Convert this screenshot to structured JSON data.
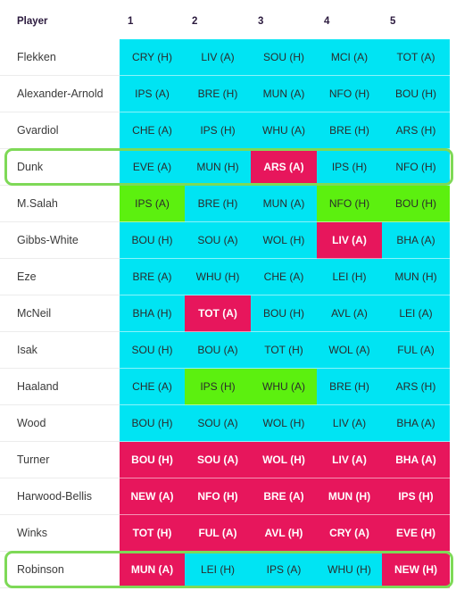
{
  "header": {
    "player": "Player",
    "gameweeks": [
      "1",
      "2",
      "3",
      "4",
      "5"
    ]
  },
  "colors": {
    "easy": "#00e4f3",
    "good": "#5cf00f",
    "hard": "#e7165c",
    "highlight": "#7ed957"
  },
  "rows": [
    {
      "player": "Flekken",
      "fixtures": [
        {
          "label": "CRY (H)",
          "tier": "easy"
        },
        {
          "label": "LIV (A)",
          "tier": "easy"
        },
        {
          "label": "SOU (H)",
          "tier": "easy"
        },
        {
          "label": "MCI (A)",
          "tier": "easy"
        },
        {
          "label": "TOT (A)",
          "tier": "easy"
        }
      ]
    },
    {
      "player": "Alexander-Arnold",
      "fixtures": [
        {
          "label": "IPS (A)",
          "tier": "easy"
        },
        {
          "label": "BRE (H)",
          "tier": "easy"
        },
        {
          "label": "MUN (A)",
          "tier": "easy"
        },
        {
          "label": "NFO (H)",
          "tier": "easy"
        },
        {
          "label": "BOU (H)",
          "tier": "easy"
        }
      ]
    },
    {
      "player": "Gvardiol",
      "fixtures": [
        {
          "label": "CHE (A)",
          "tier": "easy"
        },
        {
          "label": "IPS (H)",
          "tier": "easy"
        },
        {
          "label": "WHU (A)",
          "tier": "easy"
        },
        {
          "label": "BRE (H)",
          "tier": "easy"
        },
        {
          "label": "ARS (H)",
          "tier": "easy"
        }
      ]
    },
    {
      "player": "Dunk",
      "highlighted": true,
      "fixtures": [
        {
          "label": "EVE (A)",
          "tier": "easy"
        },
        {
          "label": "MUN (H)",
          "tier": "easy"
        },
        {
          "label": "ARS (A)",
          "tier": "hard"
        },
        {
          "label": "IPS (H)",
          "tier": "easy"
        },
        {
          "label": "NFO (H)",
          "tier": "easy"
        }
      ]
    },
    {
      "player": "M.Salah",
      "fixtures": [
        {
          "label": "IPS (A)",
          "tier": "good"
        },
        {
          "label": "BRE (H)",
          "tier": "easy"
        },
        {
          "label": "MUN (A)",
          "tier": "easy"
        },
        {
          "label": "NFO (H)",
          "tier": "good"
        },
        {
          "label": "BOU (H)",
          "tier": "good"
        }
      ]
    },
    {
      "player": "Gibbs-White",
      "fixtures": [
        {
          "label": "BOU (H)",
          "tier": "easy"
        },
        {
          "label": "SOU (A)",
          "tier": "easy"
        },
        {
          "label": "WOL (H)",
          "tier": "easy"
        },
        {
          "label": "LIV (A)",
          "tier": "hard"
        },
        {
          "label": "BHA (A)",
          "tier": "easy"
        }
      ]
    },
    {
      "player": "Eze",
      "fixtures": [
        {
          "label": "BRE (A)",
          "tier": "easy"
        },
        {
          "label": "WHU (H)",
          "tier": "easy"
        },
        {
          "label": "CHE (A)",
          "tier": "easy"
        },
        {
          "label": "LEI (H)",
          "tier": "easy"
        },
        {
          "label": "MUN (H)",
          "tier": "easy"
        }
      ]
    },
    {
      "player": "McNeil",
      "fixtures": [
        {
          "label": "BHA (H)",
          "tier": "easy"
        },
        {
          "label": "TOT (A)",
          "tier": "hard"
        },
        {
          "label": "BOU (H)",
          "tier": "easy"
        },
        {
          "label": "AVL (A)",
          "tier": "easy"
        },
        {
          "label": "LEI (A)",
          "tier": "easy"
        }
      ]
    },
    {
      "player": "Isak",
      "fixtures": [
        {
          "label": "SOU (H)",
          "tier": "easy"
        },
        {
          "label": "BOU (A)",
          "tier": "easy"
        },
        {
          "label": "TOT (H)",
          "tier": "easy"
        },
        {
          "label": "WOL (A)",
          "tier": "easy"
        },
        {
          "label": "FUL (A)",
          "tier": "easy"
        }
      ]
    },
    {
      "player": "Haaland",
      "fixtures": [
        {
          "label": "CHE (A)",
          "tier": "easy"
        },
        {
          "label": "IPS (H)",
          "tier": "good"
        },
        {
          "label": "WHU (A)",
          "tier": "good"
        },
        {
          "label": "BRE (H)",
          "tier": "easy"
        },
        {
          "label": "ARS (H)",
          "tier": "easy"
        }
      ]
    },
    {
      "player": "Wood",
      "fixtures": [
        {
          "label": "BOU (H)",
          "tier": "easy"
        },
        {
          "label": "SOU (A)",
          "tier": "easy"
        },
        {
          "label": "WOL (H)",
          "tier": "easy"
        },
        {
          "label": "LIV (A)",
          "tier": "easy"
        },
        {
          "label": "BHA (A)",
          "tier": "easy"
        }
      ]
    },
    {
      "player": "Turner",
      "fixtures": [
        {
          "label": "BOU (H)",
          "tier": "hard"
        },
        {
          "label": "SOU (A)",
          "tier": "hard"
        },
        {
          "label": "WOL (H)",
          "tier": "hard"
        },
        {
          "label": "LIV (A)",
          "tier": "hard"
        },
        {
          "label": "BHA (A)",
          "tier": "hard"
        }
      ]
    },
    {
      "player": "Harwood-Bellis",
      "fixtures": [
        {
          "label": "NEW (A)",
          "tier": "hard"
        },
        {
          "label": "NFO (H)",
          "tier": "hard"
        },
        {
          "label": "BRE (A)",
          "tier": "hard"
        },
        {
          "label": "MUN (H)",
          "tier": "hard"
        },
        {
          "label": "IPS (H)",
          "tier": "hard"
        }
      ]
    },
    {
      "player": "Winks",
      "fixtures": [
        {
          "label": "TOT (H)",
          "tier": "hard"
        },
        {
          "label": "FUL (A)",
          "tier": "hard"
        },
        {
          "label": "AVL (H)",
          "tier": "hard"
        },
        {
          "label": "CRY (A)",
          "tier": "hard"
        },
        {
          "label": "EVE (H)",
          "tier": "hard"
        }
      ]
    },
    {
      "player": "Robinson",
      "highlighted": true,
      "fixtures": [
        {
          "label": "MUN (A)",
          "tier": "hard"
        },
        {
          "label": "LEI (H)",
          "tier": "easy"
        },
        {
          "label": "IPS (A)",
          "tier": "easy"
        },
        {
          "label": "WHU (H)",
          "tier": "easy"
        },
        {
          "label": "NEW (H)",
          "tier": "hard"
        }
      ]
    }
  ]
}
